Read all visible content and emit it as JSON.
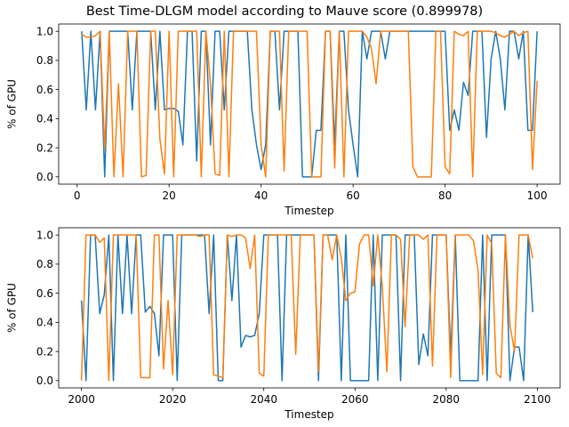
{
  "title": "Best Time-DLGM model according to Mauve score (0.899978)",
  "colors": {
    "series1": "#1f77b4",
    "series2": "#ff7f0e"
  },
  "chart_data": [
    {
      "type": "line",
      "xlabel": "Timestep",
      "ylabel": "% of GPU",
      "xlim": [
        -4,
        105
      ],
      "ylim": [
        -0.05,
        1.05
      ],
      "xticks": [
        0,
        20,
        40,
        60,
        80,
        100
      ],
      "yticks": [
        0.0,
        0.2,
        0.4,
        0.6,
        0.8,
        1.0
      ],
      "x_start": 1,
      "series": [
        {
          "values": [
            1.0,
            0.46,
            1.0,
            0.46,
            1.0,
            0.0,
            1.0,
            1.0,
            1.0,
            1.0,
            1.0,
            0.46,
            1.0,
            1.0,
            1.0,
            1.0,
            0.46,
            1.0,
            0.46,
            0.47,
            0.47,
            0.45,
            0.22,
            1.0,
            1.0,
            0.11,
            1.0,
            1.0,
            0.22,
            1.0,
            1.0,
            0.46,
            1.0,
            1.0,
            1.0,
            1.0,
            1.0,
            0.46,
            0.22,
            0.05,
            0.22,
            1.0,
            1.0,
            0.46,
            1.0,
            1.0,
            1.0,
            1.0,
            0.0,
            0.0,
            0.0,
            0.32,
            0.32,
            1.0,
            1.0,
            0.22,
            1.0,
            1.0,
            0.46,
            0.22,
            0.0,
            1.0,
            0.81,
            1.0,
            1.0,
            1.0,
            0.81,
            1.0,
            1.0,
            1.0,
            1.0,
            1.0,
            1.0,
            1.0,
            1.0,
            1.0,
            1.0,
            1.0,
            1.0,
            1.0,
            0.32,
            0.46,
            0.32,
            0.65,
            0.56,
            1.0,
            1.0,
            1.0,
            0.27,
            0.81,
            1.0,
            0.81,
            0.46,
            1.0,
            1.0,
            0.81,
            1.0,
            0.32,
            0.32,
            1.0
          ]
        },
        {
          "values": [
            0.98,
            0.96,
            0.96,
            0.97,
            1.0,
            0.19,
            1.0,
            0.0,
            0.64,
            0.0,
            1.0,
            1.0,
            1.0,
            0.0,
            0.01,
            1.0,
            1.0,
            0.26,
            0.02,
            1.0,
            0.0,
            1.0,
            1.0,
            1.0,
            1.0,
            1.0,
            0.0,
            1.0,
            0.64,
            0.02,
            0.01,
            1.0,
            0.0,
            1.0,
            1.0,
            1.0,
            1.0,
            1.0,
            1.0,
            0.22,
            0.0,
            1.0,
            1.0,
            1.0,
            0.04,
            1.0,
            1.0,
            1.0,
            1.0,
            1.0,
            0.0,
            0.0,
            0.0,
            1.0,
            1.0,
            0.06,
            1.0,
            0.0,
            1.0,
            1.0,
            1.0,
            1.0,
            0.96,
            0.88,
            0.64,
            1.0,
            1.0,
            1.0,
            1.0,
            1.0,
            1.0,
            1.0,
            0.07,
            0.0,
            0.0,
            0.0,
            0.0,
            1.0,
            1.0,
            0.07,
            0.02,
            1.0,
            0.98,
            0.97,
            1.0,
            0.0,
            1.0,
            1.0,
            1.0,
            1.0,
            0.99,
            0.97,
            0.96,
            0.98,
            1.0,
            0.97,
            0.99,
            1.0,
            0.05,
            0.66
          ]
        }
      ]
    },
    {
      "type": "line",
      "xlabel": "Timestep",
      "ylabel": "% of GPU",
      "xlim": [
        1995,
        2105
      ],
      "ylim": [
        -0.05,
        1.05
      ],
      "xticks": [
        2000,
        2020,
        2040,
        2060,
        2080,
        2100
      ],
      "yticks": [
        0.0,
        0.2,
        0.4,
        0.6,
        0.8,
        1.0
      ],
      "x_start": 2000,
      "series": [
        {
          "values": [
            0.55,
            0.0,
            1.0,
            1.0,
            0.46,
            0.59,
            1.0,
            0.0,
            1.0,
            0.46,
            1.0,
            0.46,
            1.0,
            1.0,
            0.47,
            0.51,
            0.46,
            0.17,
            1.0,
            1.0,
            1.0,
            0.0,
            1.0,
            1.0,
            1.0,
            1.0,
            1.0,
            1.0,
            0.46,
            1.0,
            0.0,
            0.0,
            1.0,
            0.55,
            1.0,
            0.23,
            0.31,
            0.3,
            0.31,
            0.46,
            1.0,
            1.0,
            1.0,
            1.0,
            0.0,
            1.0,
            1.0,
            1.0,
            1.0,
            1.0,
            1.0,
            1.0,
            0.0,
            1.0,
            1.0,
            1.0,
            1.0,
            0.0,
            1.0,
            0.0,
            0.0,
            0.0,
            0.0,
            0.0,
            1.0,
            0.0,
            1.0,
            1.0,
            1.0,
            1.0,
            0.0,
            1.0,
            1.0,
            1.0,
            0.11,
            0.32,
            0.17,
            1.0,
            1.0,
            1.0,
            1.0,
            0.17,
            1.0,
            0.0,
            0.0,
            0.0,
            0.0,
            0.0,
            1.0,
            0.0,
            1.0,
            1.0,
            1.0,
            1.0,
            0.0,
            0.23,
            0.23,
            0.0,
            1.0,
            0.47
          ]
        },
        {
          "values": [
            0.0,
            1.0,
            1.0,
            1.0,
            0.95,
            0.98,
            0.0,
            1.0,
            1.0,
            1.0,
            1.0,
            1.0,
            1.0,
            0.02,
            0.02,
            0.02,
            1.0,
            1.0,
            0.08,
            0.55,
            0.04,
            1.0,
            1.0,
            1.0,
            1.0,
            1.0,
            0.99,
            1.0,
            1.0,
            0.04,
            0.03,
            0.02,
            1.0,
            0.99,
            1.0,
            1.0,
            0.98,
            0.77,
            1.0,
            0.05,
            0.03,
            1.0,
            1.0,
            1.0,
            1.0,
            1.0,
            1.0,
            0.18,
            1.0,
            1.0,
            1.0,
            1.0,
            0.06,
            1.0,
            1.0,
            0.83,
            1.0,
            0.84,
            0.55,
            0.6,
            0.61,
            0.94,
            1.0,
            1.0,
            0.65,
            1.0,
            0.64,
            0.06,
            1.0,
            1.0,
            0.97,
            0.37,
            1.0,
            1.0,
            1.0,
            0.97,
            1.0,
            0.1,
            1.0,
            1.0,
            1.0,
            0.02,
            1.0,
            1.0,
            1.0,
            1.0,
            0.96,
            0.76,
            0.04,
            1.0,
            0.94,
            0.05,
            0.02,
            1.0,
            0.38,
            0.2,
            1.0,
            1.0,
            1.0,
            0.84
          ]
        }
      ]
    }
  ]
}
